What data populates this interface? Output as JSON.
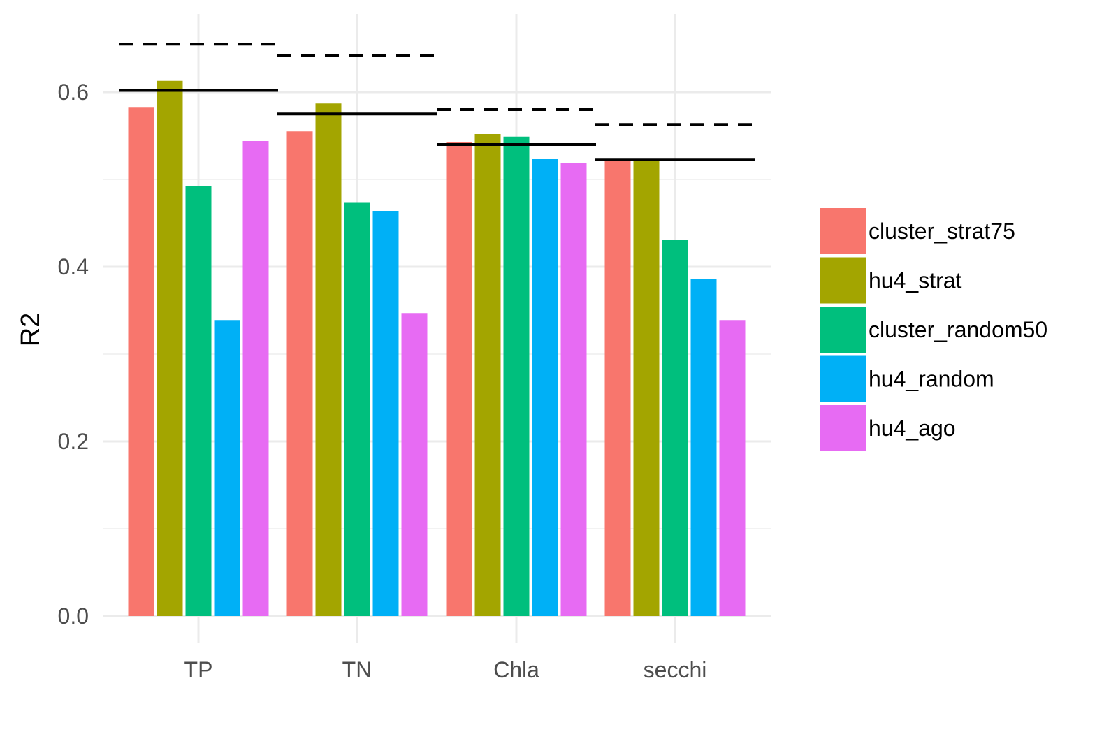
{
  "chart_data": {
    "type": "bar",
    "title": "",
    "xlabel": "",
    "ylabel": "R2",
    "ylim": [
      0,
      0.68
    ],
    "yticks": [
      "0.0",
      "0.2",
      "0.4",
      "0.6"
    ],
    "grid": true,
    "legend_position": "right",
    "categories": [
      "TP",
      "TN",
      "Chla",
      "secchi"
    ],
    "series": [
      {
        "name": "cluster_strat75",
        "color": "#F8766D",
        "values": [
          0.583,
          0.555,
          0.543,
          0.523
        ]
      },
      {
        "name": "hu4_strat",
        "color": "#A3A500",
        "values": [
          0.613,
          0.587,
          0.552,
          0.523
        ]
      },
      {
        "name": "cluster_random50",
        "color": "#00BF7D",
        "values": [
          0.492,
          0.474,
          0.549,
          0.431
        ]
      },
      {
        "name": "hu4_random",
        "color": "#00B0F6",
        "values": [
          0.339,
          0.464,
          0.524,
          0.386
        ]
      },
      {
        "name": "hu4_ago",
        "color": "#E76BF3",
        "values": [
          0.544,
          0.347,
          0.519,
          0.339
        ]
      }
    ],
    "reference_lines": {
      "solid": [
        0.602,
        0.575,
        0.54,
        0.523
      ],
      "dashed": [
        0.655,
        0.642,
        0.58,
        0.563
      ]
    }
  }
}
